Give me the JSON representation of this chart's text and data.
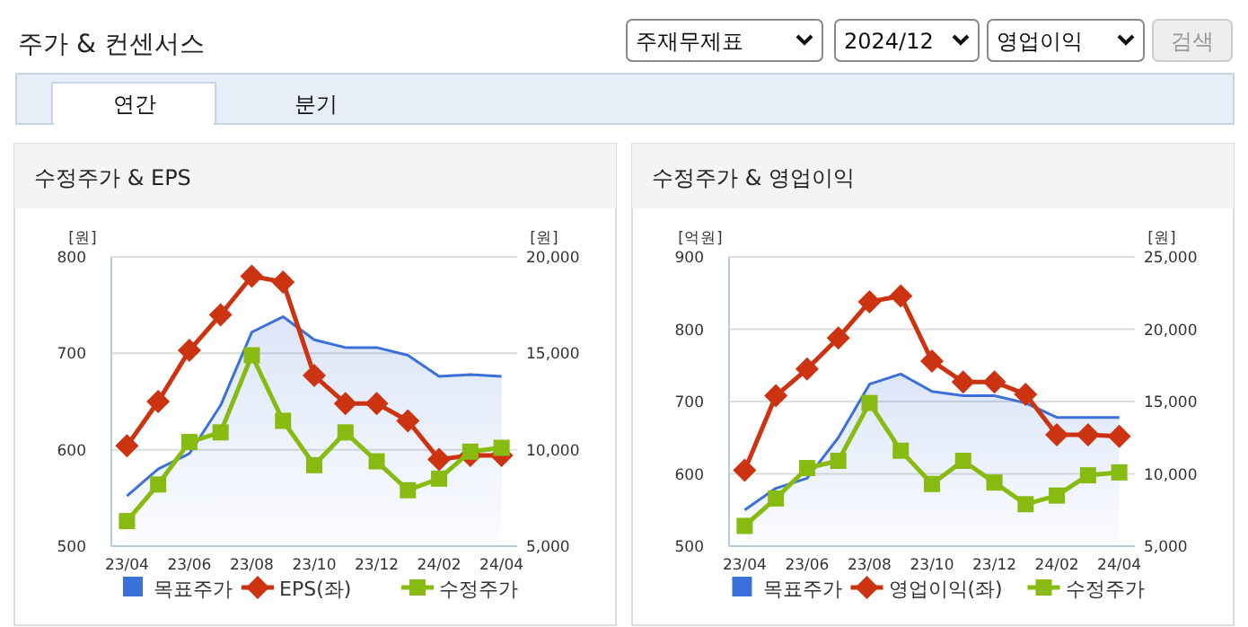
{
  "chart_data": [
    {
      "type": "other",
      "title": "주가 & 컨센서스",
      "annotations": [
        "주재무제표",
        "2024/12",
        "영업이익",
        "검색",
        "연간",
        "분기"
      ]
    },
    {
      "type": "line",
      "title": "수정주가 & EPS",
      "ylabel": "[원]",
      "y2label": "[원]",
      "categories": [
        "23/04",
        null,
        "23/06",
        null,
        "23/08",
        null,
        "23/10",
        null,
        "23/12",
        null,
        "24/02",
        null,
        "24/04"
      ],
      "ylim": [
        500,
        800
      ],
      "yticks": [
        500,
        600,
        700,
        800
      ],
      "y2lim": [
        5000,
        20000
      ],
      "y2ticks": [
        {
          "value": 5000,
          "label": "5,000"
        },
        {
          "value": 10000,
          "label": "10,000"
        },
        {
          "value": 15000,
          "label": "15,000"
        },
        {
          "value": 20000,
          "label": "20,000"
        }
      ],
      "grid": "y",
      "legend": "bottom",
      "series": [
        {
          "name": "목표주가",
          "type": "area",
          "axis": "y2",
          "color": "#3a70d8",
          "values": [
            7600,
            9000,
            9800,
            12300,
            16100,
            16900,
            15700,
            15300,
            15300,
            14900,
            13800,
            13900,
            13800
          ]
        },
        {
          "name": "EPS(좌)",
          "type": "line",
          "axis": "y",
          "color": "#cc3311",
          "marker": "diamond",
          "values": [
            604,
            650,
            703,
            740,
            780,
            774,
            677,
            648,
            648,
            630,
            590,
            594,
            594
          ]
        },
        {
          "name": "수정주가",
          "type": "line",
          "axis": "y2",
          "color": "#88bb11",
          "marker": "square",
          "values": [
            6300,
            8200,
            10400,
            10900,
            14900,
            11500,
            9200,
            10900,
            9400,
            7900,
            8500,
            9900,
            10100
          ]
        }
      ]
    },
    {
      "type": "line",
      "title": "수정주가 & 영업이익",
      "ylabel": "[억원]",
      "y2label": "[원]",
      "categories": [
        "23/04",
        null,
        "23/06",
        null,
        "23/08",
        null,
        "23/10",
        null,
        "23/12",
        null,
        "24/02",
        null,
        "24/04"
      ],
      "ylim": [
        500,
        900
      ],
      "yticks": [
        500,
        600,
        700,
        800,
        900
      ],
      "y2lim": [
        5000,
        25000
      ],
      "y2ticks": [
        {
          "value": 5000,
          "label": "5,000"
        },
        {
          "value": 10000,
          "label": "10,000"
        },
        {
          "value": 15000,
          "label": "15,000"
        },
        {
          "value": 20000,
          "label": "20,000"
        },
        {
          "value": 25000,
          "label": "25,000"
        }
      ],
      "grid": "y",
      "legend": "bottom",
      "series": [
        {
          "name": "목표주가",
          "type": "area",
          "axis": "y2",
          "color": "#3a70d8",
          "values": [
            7500,
            9000,
            9700,
            12500,
            16200,
            16900,
            15700,
            15400,
            15400,
            14900,
            13900,
            13900,
            13900
          ]
        },
        {
          "name": "영업이익(좌)",
          "type": "line",
          "axis": "y",
          "color": "#cc3311",
          "marker": "diamond",
          "values": [
            605,
            708,
            745,
            788,
            838,
            846,
            756,
            727,
            727,
            710,
            654,
            654,
            652
          ]
        },
        {
          "name": "수정주가",
          "type": "line",
          "axis": "y2",
          "color": "#88bb11",
          "marker": "square",
          "values": [
            6400,
            8300,
            10400,
            10900,
            14900,
            11600,
            9300,
            10900,
            9400,
            7900,
            8500,
            9900,
            10100
          ]
        }
      ]
    }
  ]
}
